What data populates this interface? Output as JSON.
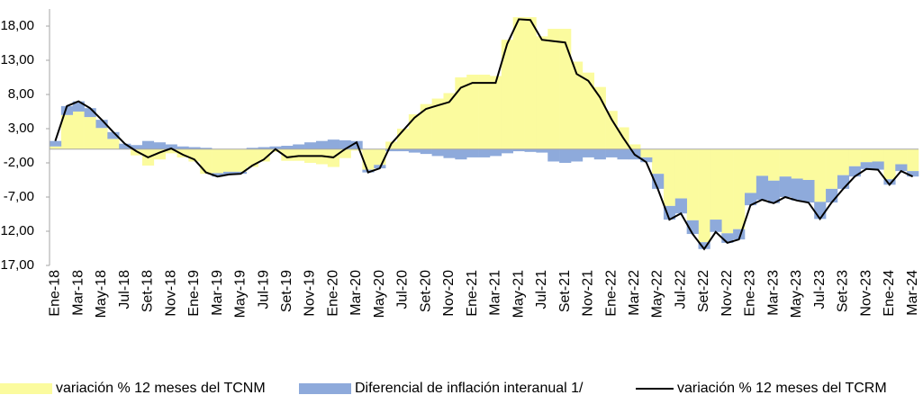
{
  "chart_data": {
    "type": "bar",
    "categories": [
      "Ene-18",
      null,
      "Mar-18",
      null,
      "May-18",
      null,
      "Jul-18",
      null,
      "Set-18",
      null,
      "Nov-18",
      null,
      "Ene-19",
      null,
      "Mar-19",
      null,
      "May-19",
      null,
      "Jul-19",
      null,
      "Set-19",
      null,
      "Nov-19",
      null,
      "Ene-20",
      null,
      "Mar-20",
      null,
      "May-20",
      null,
      "Jul-20",
      null,
      "Set-20",
      null,
      "Nov-20",
      null,
      "Ene-21",
      null,
      "Mar-21",
      null,
      "May-21",
      null,
      "Jul-21",
      null,
      "Set-21",
      null,
      "Nov-21",
      null,
      "Ene-22",
      null,
      "Mar-22",
      null,
      "May-22",
      null,
      "Jul-22",
      null,
      "Set-22",
      null,
      "Nov-22",
      null,
      "Ene-23",
      null,
      "Mar-23",
      null,
      "May-23",
      null,
      "Jul-23",
      null,
      "Set-23",
      null,
      "Nov-23",
      null,
      "Ene-24",
      null,
      "Mar-24"
    ],
    "series": [
      {
        "name": "variación % 12 meses del TCNM",
        "color": "#fbfb9e",
        "type": "bar",
        "values": [
          0.4,
          5.0,
          5.5,
          4.7,
          3.1,
          1.5,
          0.0,
          -0.9,
          -2.4,
          -1.5,
          -0.6,
          -1.2,
          -1.8,
          -3.6,
          -3.5,
          -3.3,
          -3.3,
          -2.6,
          -1.8,
          -0.4,
          -1.7,
          -1.7,
          -2.0,
          -2.2,
          -2.6,
          -1.3,
          -0.2,
          -3.0,
          -2.3,
          1.1,
          3.0,
          5.1,
          6.6,
          7.4,
          8.2,
          10.5,
          10.9,
          10.9,
          10.7,
          16.0,
          19.3,
          19.3,
          16.5,
          17.6,
          17.6,
          12.8,
          11.2,
          9.1,
          5.6,
          3.2,
          0.7,
          -1.2,
          -3.6,
          -8.3,
          -7.2,
          -10.4,
          -13.6,
          -10.3,
          -12.3,
          -11.7,
          -6.4,
          -3.9,
          -4.6,
          -4.0,
          -4.3,
          -4.5,
          -7.7,
          -5.8,
          -3.8,
          -2.5,
          -1.9,
          -1.8,
          -4.4,
          -2.2,
          -3.2
        ]
      },
      {
        "name": "Diferencial de inflación interanual 1/",
        "color": "#8eaadb",
        "type": "bar",
        "values": [
          0.8,
          1.3,
          1.5,
          1.3,
          1.2,
          1.0,
          0.8,
          0.6,
          1.2,
          1.0,
          0.7,
          0.4,
          0.3,
          0.2,
          -0.5,
          -0.4,
          -0.3,
          0.2,
          0.3,
          0.4,
          0.5,
          0.7,
          1.0,
          1.2,
          1.4,
          1.3,
          1.2,
          -0.4,
          -0.5,
          -0.3,
          -0.3,
          -0.5,
          -0.7,
          -1.0,
          -1.3,
          -1.5,
          -1.2,
          -1.2,
          -1.0,
          -0.6,
          -0.3,
          -0.4,
          -0.5,
          -1.8,
          -2.0,
          -1.8,
          -1.2,
          -1.5,
          -1.2,
          -1.5,
          -1.5,
          -0.7,
          -2.2,
          -2.0,
          -2.2,
          -2.0,
          -1.0,
          -1.8,
          -1.4,
          -1.5,
          -1.8,
          -3.5,
          -3.3,
          -3.0,
          -3.2,
          -3.3,
          -2.5,
          -2.0,
          -2.0,
          -1.5,
          -1.0,
          -1.2,
          -0.8,
          -1.0,
          -0.8
        ]
      },
      {
        "name": "variación % 12 meses del TCRM",
        "color": "#000000",
        "type": "line",
        "values": [
          1.2,
          6.3,
          7.0,
          6.0,
          4.3,
          2.5,
          0.8,
          -0.3,
          -1.2,
          -0.5,
          0.1,
          -0.8,
          -1.5,
          -3.4,
          -4.0,
          -3.7,
          -3.6,
          -2.4,
          -1.5,
          0.0,
          -1.2,
          -1.0,
          -1.0,
          -1.0,
          -1.2,
          0.0,
          1.0,
          -3.4,
          -2.8,
          0.8,
          2.7,
          4.6,
          5.9,
          6.4,
          6.9,
          9.0,
          9.7,
          9.7,
          9.7,
          15.4,
          19.0,
          18.9,
          16.0,
          15.8,
          15.6,
          11.0,
          10.0,
          7.6,
          4.4,
          1.7,
          -0.8,
          -1.9,
          -5.8,
          -10.3,
          -9.4,
          -12.4,
          -14.6,
          -12.1,
          -13.7,
          -13.2,
          -8.2,
          -7.4,
          -7.9,
          -7.0,
          -7.5,
          -7.8,
          -10.2,
          -7.8,
          -5.8,
          -4.0,
          -2.9,
          -3.0,
          -5.2,
          -3.2,
          -4.0
        ]
      }
    ],
    "ylim": [
      -17,
      20.5
    ],
    "yticks": [
      {
        "value": 18,
        "label": "18,00"
      },
      {
        "value": 13,
        "label": "13,00"
      },
      {
        "value": 8,
        "label": "8,00"
      },
      {
        "value": 3,
        "label": "3,00"
      },
      {
        "value": -2,
        "label": "-2,00"
      },
      {
        "value": -7,
        "label": "-7,00"
      },
      {
        "value": -12,
        "label": "-12,00"
      },
      {
        "value": -17,
        "label": "-17,00"
      }
    ],
    "grid": false
  }
}
